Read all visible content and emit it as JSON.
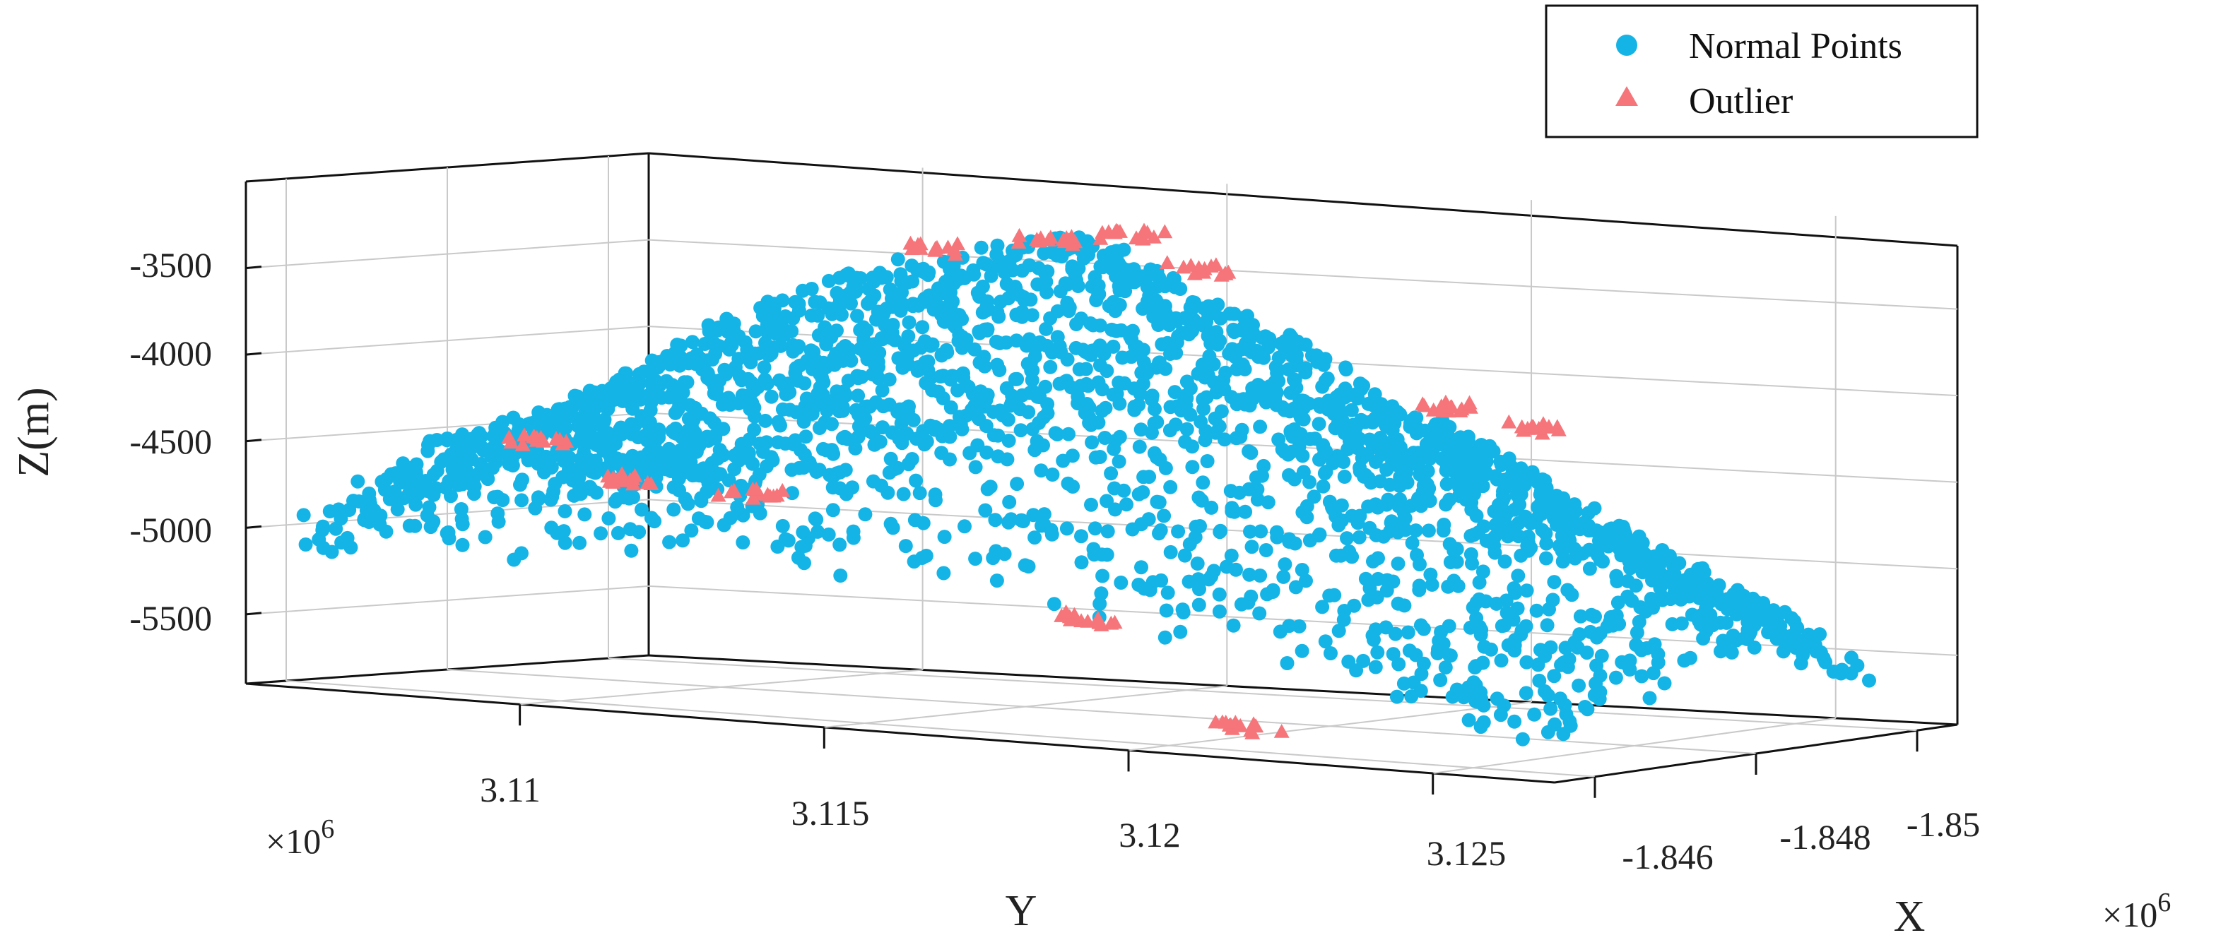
{
  "chart_data": {
    "type": "scatter",
    "projection": "3d",
    "title": "",
    "xlabel": "X",
    "ylabel": "Y",
    "zlabel": "Z(m)",
    "x_exponent_label": "×10",
    "x_exponent_power": "6",
    "y_exponent_label": "×10",
    "y_exponent_power": "6",
    "xlim": [
      -1.8455,
      -1.8505
    ],
    "ylim": [
      3.1055,
      3.127
    ],
    "zlim": [
      -5900,
      -3000
    ],
    "x_ticks": [
      {
        "value": -1.846,
        "label": "-1.846"
      },
      {
        "value": -1.848,
        "label": "-1.848"
      },
      {
        "value": -1.85,
        "label": "-1.85"
      }
    ],
    "y_ticks": [
      {
        "value": 3.11,
        "label": "3.11"
      },
      {
        "value": 3.115,
        "label": "3.115"
      },
      {
        "value": 3.12,
        "label": "3.12"
      },
      {
        "value": 3.125,
        "label": "3.125"
      }
    ],
    "z_ticks": [
      {
        "value": -3500,
        "label": "-3500"
      },
      {
        "value": -4000,
        "label": "-4000"
      },
      {
        "value": -4500,
        "label": "-4500"
      },
      {
        "value": -5000,
        "label": "-5000"
      },
      {
        "value": -5500,
        "label": "-5500"
      }
    ],
    "grid": true,
    "legend_position": "top-right",
    "series": [
      {
        "name": "Normal Points",
        "marker": "circle",
        "color": "#14b4e6",
        "surface_profile": [
          {
            "y": 3.1055,
            "x": -1.846,
            "z": -4600
          },
          {
            "y": 3.108,
            "x": -1.8465,
            "z": -4250
          },
          {
            "y": 3.1105,
            "x": -1.847,
            "z": -3700
          },
          {
            "y": 3.113,
            "x": -1.8475,
            "z": -3350
          },
          {
            "y": 3.116,
            "x": -1.8478,
            "z": -3150
          },
          {
            "y": 3.1185,
            "x": -1.848,
            "z": -3550
          },
          {
            "y": 3.121,
            "x": -1.8482,
            "z": -4000
          },
          {
            "y": 3.1235,
            "x": -1.8486,
            "z": -4450
          },
          {
            "y": 3.1255,
            "x": -1.8492,
            "z": -4900
          },
          {
            "y": 3.127,
            "x": -1.85,
            "z": -5400
          }
        ]
      },
      {
        "name": "Outlier",
        "marker": "triangle",
        "color": "#f5757a",
        "points": [
          {
            "y": 3.114,
            "x": -1.8476,
            "z": -3250
          },
          {
            "y": 3.1155,
            "x": -1.8478,
            "z": -3180
          },
          {
            "y": 3.117,
            "x": -1.8478,
            "z": -3120
          },
          {
            "y": 3.118,
            "x": -1.8479,
            "z": -3300
          },
          {
            "y": 3.1215,
            "x": -1.8484,
            "z": -4050
          },
          {
            "y": 3.1225,
            "x": -1.8486,
            "z": -4150
          },
          {
            "y": 3.109,
            "x": -1.8465,
            "z": -4450
          },
          {
            "y": 3.11,
            "x": -1.8468,
            "z": -4650
          },
          {
            "y": 3.1118,
            "x": -1.847,
            "z": -4700
          },
          {
            "y": 3.118,
            "x": -1.8465,
            "z": -5250
          },
          {
            "y": 3.12,
            "x": -1.847,
            "z": -5850
          }
        ]
      }
    ]
  },
  "legend": {
    "items": [
      {
        "label": "Normal Points",
        "marker": "circle",
        "color": "#14b4e6"
      },
      {
        "label": "Outlier",
        "marker": "triangle",
        "color": "#f5757a"
      }
    ]
  }
}
